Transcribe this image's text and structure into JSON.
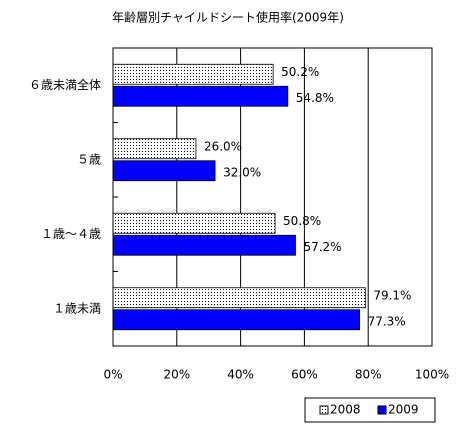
{
  "chart_data": {
    "type": "barh",
    "title": "年齢層別チャイルドシート使用率(2009年)",
    "categories": [
      "６歳未満全体",
      "５歳",
      "１歳～４歳",
      "１歳未満"
    ],
    "series": [
      {
        "name": "2008",
        "color": "#ffffff",
        "hatch": "dots",
        "values": [
          50.2,
          26.0,
          50.8,
          79.1
        ],
        "value_labels": [
          "50.2%",
          "26.0%",
          "50.8%",
          "79.1%"
        ]
      },
      {
        "name": "2009",
        "color": "#0000ff",
        "values": [
          54.8,
          32.0,
          57.2,
          77.3
        ],
        "value_labels": [
          "54.8%",
          "32.0%",
          "57.2%",
          "77.3%"
        ]
      }
    ],
    "xlim": [
      0,
      100
    ],
    "xticks": [
      {
        "value": 0,
        "label": "0%"
      },
      {
        "value": 20,
        "label": "20%"
      },
      {
        "value": 40,
        "label": "40%"
      },
      {
        "value": 60,
        "label": "60%"
      },
      {
        "value": 80,
        "label": "80%"
      },
      {
        "value": 100,
        "label": "100%"
      }
    ],
    "grid": true,
    "legend": "bottom-right"
  }
}
